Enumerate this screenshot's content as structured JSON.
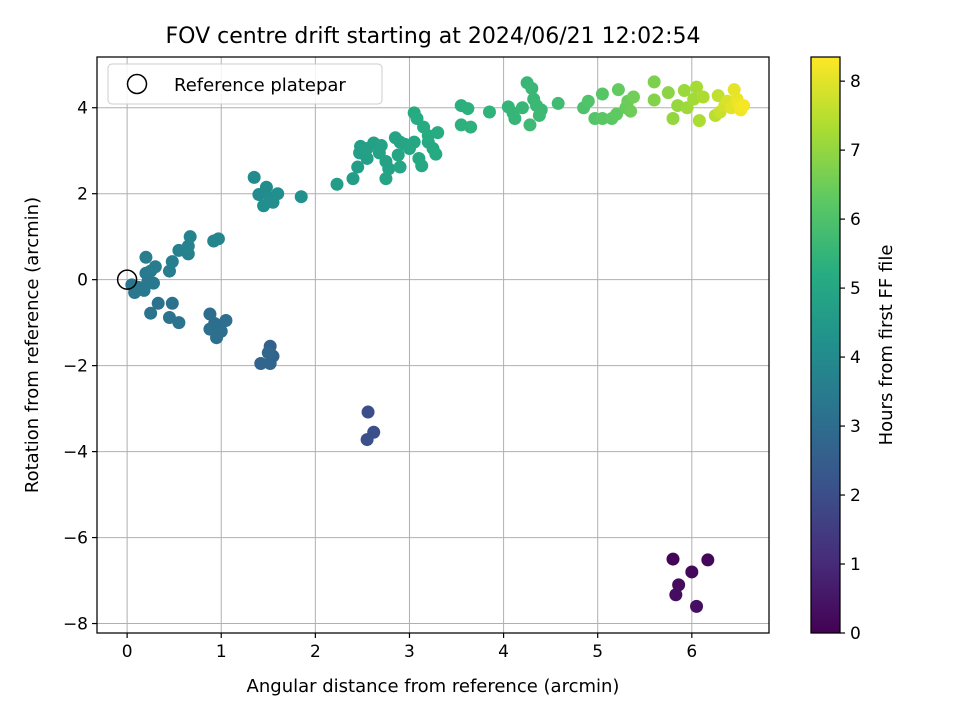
{
  "chart_data": {
    "type": "scatter",
    "title": "FOV centre drift starting at 2024/06/21 12:02:54",
    "xlabel": "Angular distance from reference (arcmin)",
    "ylabel": "Rotation from reference (arcmin)",
    "xlim": [
      -0.32,
      6.82
    ],
    "ylim": [
      -8.22,
      5.18
    ],
    "xticks": [
      0,
      1,
      2,
      3,
      4,
      5,
      6
    ],
    "yticks": [
      -8,
      -6,
      -4,
      -2,
      0,
      2,
      4
    ],
    "grid": true,
    "colormap": "viridis",
    "colorbar": {
      "label": "Hours from first FF file",
      "range": [
        0,
        8.35
      ],
      "ticks": [
        0,
        1,
        2,
        3,
        4,
        5,
        6,
        7,
        8
      ]
    },
    "legend": {
      "placement": "top-left",
      "entries": [
        {
          "label": "Reference platepar",
          "marker": "open-circle"
        }
      ]
    },
    "reference_point": {
      "x": 0,
      "y": 0
    },
    "points": [
      {
        "x": 5.8,
        "y": -6.5,
        "h": 0.1
      },
      {
        "x": 6.17,
        "y": -6.52,
        "h": 0.15
      },
      {
        "x": 6.0,
        "y": -6.8,
        "h": 0.2
      },
      {
        "x": 5.86,
        "y": -7.1,
        "h": 0.25
      },
      {
        "x": 5.83,
        "y": -7.33,
        "h": 0.3
      },
      {
        "x": 6.05,
        "y": -7.6,
        "h": 0.35
      },
      {
        "x": 2.56,
        "y": -3.08,
        "h": 2.0
      },
      {
        "x": 2.62,
        "y": -3.55,
        "h": 2.05
      },
      {
        "x": 2.55,
        "y": -3.72,
        "h": 2.1
      },
      {
        "x": 1.52,
        "y": -1.55,
        "h": 2.6
      },
      {
        "x": 1.55,
        "y": -1.78,
        "h": 2.65
      },
      {
        "x": 1.42,
        "y": -1.95,
        "h": 2.7
      },
      {
        "x": 1.52,
        "y": -1.95,
        "h": 2.75
      },
      {
        "x": 1.5,
        "y": -1.7,
        "h": 2.8
      },
      {
        "x": 0.88,
        "y": -0.8,
        "h": 3.0
      },
      {
        "x": 1.05,
        "y": -0.95,
        "h": 3.02
      },
      {
        "x": 0.93,
        "y": -1.02,
        "h": 3.04
      },
      {
        "x": 0.88,
        "y": -1.15,
        "h": 3.06
      },
      {
        "x": 1.0,
        "y": -1.2,
        "h": 3.08
      },
      {
        "x": 0.95,
        "y": -1.35,
        "h": 3.1
      },
      {
        "x": 0.48,
        "y": -0.55,
        "h": 3.15
      },
      {
        "x": 0.33,
        "y": -0.55,
        "h": 3.18
      },
      {
        "x": 0.45,
        "y": -0.88,
        "h": 3.2
      },
      {
        "x": 0.25,
        "y": -0.78,
        "h": 3.22
      },
      {
        "x": 0.55,
        "y": -1.0,
        "h": 3.24
      },
      {
        "x": 0.05,
        "y": -0.12,
        "h": 3.3
      },
      {
        "x": 0.08,
        "y": -0.3,
        "h": 3.32
      },
      {
        "x": 0.12,
        "y": -0.18,
        "h": 3.34
      },
      {
        "x": 0.18,
        "y": -0.25,
        "h": 3.36
      },
      {
        "x": 0.22,
        "y": -0.05,
        "h": 3.38
      },
      {
        "x": 0.28,
        "y": -0.08,
        "h": 3.4
      },
      {
        "x": 0.2,
        "y": 0.15,
        "h": 3.45
      },
      {
        "x": 0.25,
        "y": 0.2,
        "h": 3.48
      },
      {
        "x": 0.3,
        "y": 0.3,
        "h": 3.5
      },
      {
        "x": 0.2,
        "y": 0.52,
        "h": 3.52
      },
      {
        "x": 0.45,
        "y": 0.2,
        "h": 3.55
      },
      {
        "x": 0.48,
        "y": 0.42,
        "h": 3.58
      },
      {
        "x": 0.55,
        "y": 0.68,
        "h": 3.62
      },
      {
        "x": 0.65,
        "y": 0.6,
        "h": 3.65
      },
      {
        "x": 0.65,
        "y": 0.78,
        "h": 3.7
      },
      {
        "x": 0.67,
        "y": 1.0,
        "h": 3.75
      },
      {
        "x": 0.92,
        "y": 0.9,
        "h": 3.8
      },
      {
        "x": 0.97,
        "y": 0.95,
        "h": 3.82
      },
      {
        "x": 1.35,
        "y": 2.38,
        "h": 4.0
      },
      {
        "x": 1.4,
        "y": 1.98,
        "h": 4.02
      },
      {
        "x": 1.48,
        "y": 2.15,
        "h": 4.05
      },
      {
        "x": 1.52,
        "y": 1.9,
        "h": 4.08
      },
      {
        "x": 1.45,
        "y": 1.72,
        "h": 4.1
      },
      {
        "x": 1.55,
        "y": 1.8,
        "h": 4.12
      },
      {
        "x": 1.6,
        "y": 2.0,
        "h": 4.15
      },
      {
        "x": 1.85,
        "y": 1.93,
        "h": 4.2
      },
      {
        "x": 2.23,
        "y": 2.22,
        "h": 4.6
      },
      {
        "x": 2.4,
        "y": 2.35,
        "h": 4.62
      },
      {
        "x": 2.45,
        "y": 2.62,
        "h": 4.65
      },
      {
        "x": 2.47,
        "y": 2.95,
        "h": 4.68
      },
      {
        "x": 2.55,
        "y": 2.82,
        "h": 4.7
      },
      {
        "x": 2.48,
        "y": 3.1,
        "h": 4.72
      },
      {
        "x": 2.55,
        "y": 3.05,
        "h": 4.74
      },
      {
        "x": 2.62,
        "y": 3.18,
        "h": 4.76
      },
      {
        "x": 2.7,
        "y": 3.12,
        "h": 4.78
      },
      {
        "x": 2.68,
        "y": 2.95,
        "h": 4.8
      },
      {
        "x": 2.75,
        "y": 2.75,
        "h": 4.82
      },
      {
        "x": 2.78,
        "y": 2.58,
        "h": 4.84
      },
      {
        "x": 2.75,
        "y": 2.35,
        "h": 4.86
      },
      {
        "x": 2.85,
        "y": 3.3,
        "h": 4.88
      },
      {
        "x": 2.9,
        "y": 3.2,
        "h": 4.9
      },
      {
        "x": 2.88,
        "y": 2.9,
        "h": 4.92
      },
      {
        "x": 2.95,
        "y": 3.15,
        "h": 4.94
      },
      {
        "x": 2.9,
        "y": 2.62,
        "h": 4.96
      },
      {
        "x": 3.0,
        "y": 3.05,
        "h": 4.98
      },
      {
        "x": 3.05,
        "y": 3.2,
        "h": 5.0
      },
      {
        "x": 3.1,
        "y": 2.82,
        "h": 5.02
      },
      {
        "x": 3.13,
        "y": 2.65,
        "h": 5.04
      },
      {
        "x": 3.2,
        "y": 3.2,
        "h": 5.06
      },
      {
        "x": 3.25,
        "y": 3.05,
        "h": 5.08
      },
      {
        "x": 3.28,
        "y": 2.92,
        "h": 5.1
      },
      {
        "x": 3.05,
        "y": 3.88,
        "h": 5.12
      },
      {
        "x": 3.08,
        "y": 3.75,
        "h": 5.14
      },
      {
        "x": 3.15,
        "y": 3.55,
        "h": 5.16
      },
      {
        "x": 3.2,
        "y": 3.35,
        "h": 5.18
      },
      {
        "x": 3.3,
        "y": 3.42,
        "h": 5.2
      },
      {
        "x": 3.55,
        "y": 4.05,
        "h": 5.3
      },
      {
        "x": 3.62,
        "y": 3.98,
        "h": 5.32
      },
      {
        "x": 3.55,
        "y": 3.6,
        "h": 5.34
      },
      {
        "x": 3.65,
        "y": 3.55,
        "h": 5.36
      },
      {
        "x": 3.85,
        "y": 3.9,
        "h": 5.4
      },
      {
        "x": 4.05,
        "y": 4.02,
        "h": 5.5
      },
      {
        "x": 4.1,
        "y": 3.88,
        "h": 5.52
      },
      {
        "x": 4.12,
        "y": 3.75,
        "h": 5.54
      },
      {
        "x": 4.2,
        "y": 4.0,
        "h": 5.56
      },
      {
        "x": 4.25,
        "y": 4.58,
        "h": 5.58
      },
      {
        "x": 4.3,
        "y": 4.45,
        "h": 5.6
      },
      {
        "x": 4.32,
        "y": 4.2,
        "h": 5.62
      },
      {
        "x": 4.35,
        "y": 4.05,
        "h": 5.64
      },
      {
        "x": 4.4,
        "y": 3.95,
        "h": 5.66
      },
      {
        "x": 4.38,
        "y": 3.82,
        "h": 5.68
      },
      {
        "x": 4.28,
        "y": 3.6,
        "h": 5.7
      },
      {
        "x": 4.58,
        "y": 4.1,
        "h": 5.75
      },
      {
        "x": 4.85,
        "y": 4.0,
        "h": 6.0
      },
      {
        "x": 4.9,
        "y": 4.15,
        "h": 6.05
      },
      {
        "x": 4.97,
        "y": 3.75,
        "h": 6.1
      },
      {
        "x": 5.05,
        "y": 4.32,
        "h": 6.15
      },
      {
        "x": 5.05,
        "y": 3.75,
        "h": 6.2
      },
      {
        "x": 5.15,
        "y": 3.75,
        "h": 6.25
      },
      {
        "x": 5.2,
        "y": 3.85,
        "h": 6.3
      },
      {
        "x": 5.22,
        "y": 4.42,
        "h": 6.35
      },
      {
        "x": 5.3,
        "y": 4.0,
        "h": 6.4
      },
      {
        "x": 5.32,
        "y": 4.15,
        "h": 6.45
      },
      {
        "x": 5.35,
        "y": 3.92,
        "h": 6.5
      },
      {
        "x": 5.38,
        "y": 4.25,
        "h": 6.55
      },
      {
        "x": 5.6,
        "y": 4.6,
        "h": 6.7
      },
      {
        "x": 5.6,
        "y": 4.18,
        "h": 6.8
      },
      {
        "x": 5.75,
        "y": 4.35,
        "h": 6.9
      },
      {
        "x": 5.8,
        "y": 3.75,
        "h": 7.0
      },
      {
        "x": 5.85,
        "y": 4.05,
        "h": 7.05
      },
      {
        "x": 5.92,
        "y": 4.4,
        "h": 7.1
      },
      {
        "x": 5.95,
        "y": 4.0,
        "h": 7.15
      },
      {
        "x": 6.02,
        "y": 4.2,
        "h": 7.2
      },
      {
        "x": 6.05,
        "y": 4.48,
        "h": 7.25
      },
      {
        "x": 6.08,
        "y": 3.7,
        "h": 7.3
      },
      {
        "x": 6.12,
        "y": 4.25,
        "h": 7.35
      },
      {
        "x": 6.25,
        "y": 3.82,
        "h": 7.5
      },
      {
        "x": 6.28,
        "y": 4.28,
        "h": 7.6
      },
      {
        "x": 6.3,
        "y": 3.9,
        "h": 7.7
      },
      {
        "x": 6.35,
        "y": 4.05,
        "h": 7.8
      },
      {
        "x": 6.38,
        "y": 4.15,
        "h": 7.9
      },
      {
        "x": 6.42,
        "y": 4.0,
        "h": 8.0
      },
      {
        "x": 6.45,
        "y": 4.42,
        "h": 8.05
      },
      {
        "x": 6.48,
        "y": 4.2,
        "h": 8.1
      },
      {
        "x": 6.5,
        "y": 4.1,
        "h": 8.15
      },
      {
        "x": 6.52,
        "y": 3.95,
        "h": 8.2
      },
      {
        "x": 6.55,
        "y": 4.05,
        "h": 8.25
      }
    ]
  }
}
